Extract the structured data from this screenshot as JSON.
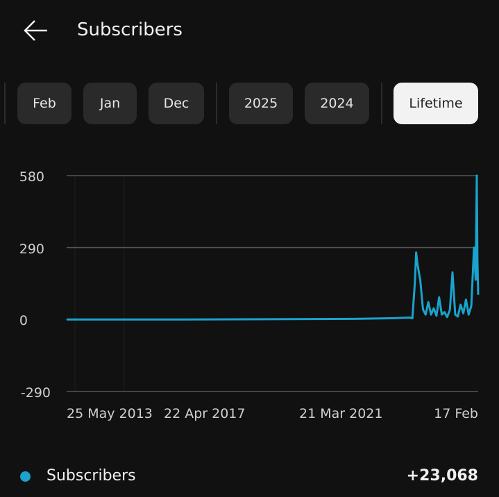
{
  "header": {
    "title": "Subscribers",
    "back_icon": "arrow-left-icon"
  },
  "filters": [
    {
      "label": "Feb"
    },
    {
      "label": "Jan"
    },
    {
      "label": "Dec"
    },
    {
      "label": "2025"
    },
    {
      "label": "2024"
    },
    {
      "label": "Lifetime",
      "selected": true
    }
  ],
  "chart_data": {
    "type": "line",
    "ylim": [
      -290,
      580
    ],
    "yticks": [
      "580",
      "290",
      "0",
      "-290"
    ],
    "xticks": [
      "25 May 2013",
      "22 Apr 2017",
      "21 Mar 2021",
      "17 Feb"
    ],
    "grid": true,
    "color": "#1aa3cc",
    "series": [
      {
        "name": "Subscribers",
        "points": [
          [
            "2012-05",
            0
          ],
          [
            "2016-01",
            0
          ],
          [
            "2020-01",
            2
          ],
          [
            "2021-06",
            3
          ],
          [
            "2022-06",
            5
          ],
          [
            "2023-01",
            8
          ],
          [
            "2023-02",
            5
          ],
          [
            "2023-03",
            150
          ],
          [
            "2023-03-15",
            270
          ],
          [
            "2023-04",
            220
          ],
          [
            "2023-05",
            160
          ],
          [
            "2023-06",
            40
          ],
          [
            "2023-07",
            20
          ],
          [
            "2023-08",
            70
          ],
          [
            "2023-09",
            20
          ],
          [
            "2023-10",
            45
          ],
          [
            "2023-11",
            15
          ],
          [
            "2023-12",
            90
          ],
          [
            "2024-01",
            20
          ],
          [
            "2024-02",
            30
          ],
          [
            "2024-03",
            10
          ],
          [
            "2024-04",
            38
          ],
          [
            "2024-05",
            190
          ],
          [
            "2024-06",
            20
          ],
          [
            "2024-07",
            12
          ],
          [
            "2024-08",
            60
          ],
          [
            "2024-09",
            25
          ],
          [
            "2024-10",
            80
          ],
          [
            "2024-11",
            20
          ],
          [
            "2024-12",
            55
          ],
          [
            "2025-01",
            290
          ],
          [
            "2025-01-20",
            160
          ],
          [
            "2025-02-01",
            580
          ],
          [
            "2025-02-08",
            240
          ],
          [
            "2025-02-17",
            100
          ]
        ]
      }
    ]
  },
  "legend": {
    "name": "Subscribers",
    "total": "+23,068"
  }
}
